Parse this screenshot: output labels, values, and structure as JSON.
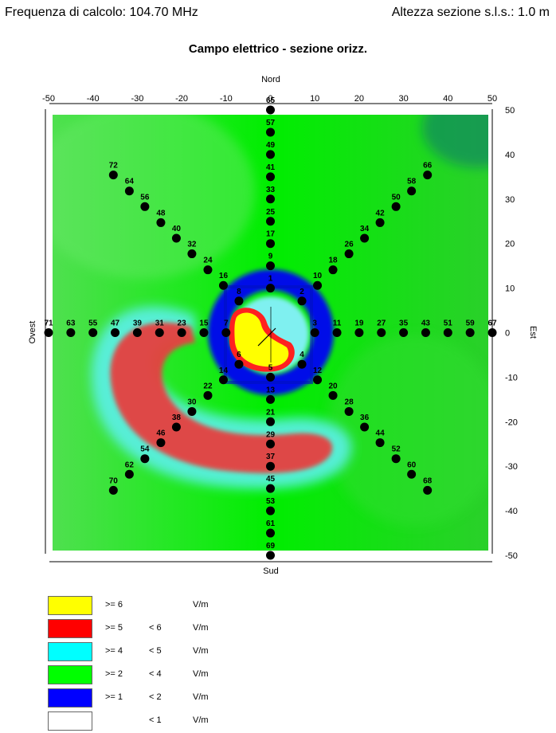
{
  "header": {
    "frequency": "Frequenza di calcolo: 104.70 MHz",
    "height": "Altezza sezione s.l.s.: 1.0 m"
  },
  "title": "Campo elettrico - sezione orizz.",
  "compass": {
    "north": "Nord",
    "south": "Sud",
    "west": "Ovest",
    "east": "Est"
  },
  "axes": {
    "x_ticks": [
      "-50",
      "-40",
      "-30",
      "-20",
      "-10",
      "0",
      "10",
      "20",
      "30",
      "40",
      "50"
    ],
    "y_ticks": [
      "50",
      "40",
      "30",
      "20",
      "10",
      "0",
      "-10",
      "-20",
      "-30",
      "-40",
      "-50"
    ]
  },
  "points": [
    {
      "id": "65",
      "x": 0,
      "y": 50
    },
    {
      "id": "57",
      "x": 0,
      "y": 45
    },
    {
      "id": "49",
      "x": 0,
      "y": 40
    },
    {
      "id": "41",
      "x": 0,
      "y": 35
    },
    {
      "id": "33",
      "x": 0,
      "y": 30
    },
    {
      "id": "25",
      "x": 0,
      "y": 25
    },
    {
      "id": "17",
      "x": 0,
      "y": 20
    },
    {
      "id": "9",
      "x": 0,
      "y": 15
    },
    {
      "id": "1",
      "x": 0,
      "y": 10
    },
    {
      "id": "5",
      "x": 0,
      "y": -10
    },
    {
      "id": "13",
      "x": 0,
      "y": -15
    },
    {
      "id": "21",
      "x": 0,
      "y": -20
    },
    {
      "id": "29",
      "x": 0,
      "y": -25
    },
    {
      "id": "37",
      "x": 0,
      "y": -30
    },
    {
      "id": "45",
      "x": 0,
      "y": -35
    },
    {
      "id": "53",
      "x": 0,
      "y": -40
    },
    {
      "id": "61",
      "x": 0,
      "y": -45
    },
    {
      "id": "69",
      "x": 0,
      "y": -50
    },
    {
      "id": "71",
      "x": -50,
      "y": 0
    },
    {
      "id": "63",
      "x": -45,
      "y": 0
    },
    {
      "id": "55",
      "x": -40,
      "y": 0
    },
    {
      "id": "47",
      "x": -35,
      "y": 0
    },
    {
      "id": "39",
      "x": -30,
      "y": 0
    },
    {
      "id": "31",
      "x": -25,
      "y": 0
    },
    {
      "id": "23",
      "x": -20,
      "y": 0
    },
    {
      "id": "15",
      "x": -15,
      "y": 0
    },
    {
      "id": "7",
      "x": -10,
      "y": 0
    },
    {
      "id": "3",
      "x": 10,
      "y": 0
    },
    {
      "id": "11",
      "x": 15,
      "y": 0
    },
    {
      "id": "19",
      "x": 20,
      "y": 0
    },
    {
      "id": "27",
      "x": 25,
      "y": 0
    },
    {
      "id": "35",
      "x": 30,
      "y": 0
    },
    {
      "id": "43",
      "x": 35,
      "y": 0
    },
    {
      "id": "51",
      "x": 40,
      "y": 0
    },
    {
      "id": "59",
      "x": 45,
      "y": 0
    },
    {
      "id": "67",
      "x": 50,
      "y": 0
    },
    {
      "id": "2",
      "x": 7.1,
      "y": 7.1
    },
    {
      "id": "10",
      "x": 10.6,
      "y": 10.6
    },
    {
      "id": "18",
      "x": 14.1,
      "y": 14.1
    },
    {
      "id": "26",
      "x": 17.7,
      "y": 17.7
    },
    {
      "id": "34",
      "x": 21.2,
      "y": 21.2
    },
    {
      "id": "42",
      "x": 24.7,
      "y": 24.7
    },
    {
      "id": "50",
      "x": 28.3,
      "y": 28.3
    },
    {
      "id": "58",
      "x": 31.8,
      "y": 31.8
    },
    {
      "id": "66",
      "x": 35.4,
      "y": 35.4
    },
    {
      "id": "8",
      "x": -7.1,
      "y": 7.1
    },
    {
      "id": "16",
      "x": -10.6,
      "y": 10.6
    },
    {
      "id": "24",
      "x": -14.1,
      "y": 14.1
    },
    {
      "id": "32",
      "x": -17.7,
      "y": 17.7
    },
    {
      "id": "40",
      "x": -21.2,
      "y": 21.2
    },
    {
      "id": "48",
      "x": -24.7,
      "y": 24.7
    },
    {
      "id": "56",
      "x": -28.3,
      "y": 28.3
    },
    {
      "id": "64",
      "x": -31.8,
      "y": 31.8
    },
    {
      "id": "72",
      "x": -35.4,
      "y": 35.4
    },
    {
      "id": "4",
      "x": 7.1,
      "y": -7.1
    },
    {
      "id": "12",
      "x": 10.6,
      "y": -10.6
    },
    {
      "id": "20",
      "x": 14.1,
      "y": -14.1
    },
    {
      "id": "28",
      "x": 17.7,
      "y": -17.7
    },
    {
      "id": "36",
      "x": 21.2,
      "y": -21.2
    },
    {
      "id": "44",
      "x": 24.7,
      "y": -24.7
    },
    {
      "id": "52",
      "x": 28.3,
      "y": -28.3
    },
    {
      "id": "60",
      "x": 31.8,
      "y": -31.8
    },
    {
      "id": "68",
      "x": 35.4,
      "y": -35.4
    },
    {
      "id": "6",
      "x": -7.1,
      "y": -7.1
    },
    {
      "id": "14",
      "x": -10.6,
      "y": -10.6
    },
    {
      "id": "22",
      "x": -14.1,
      "y": -14.1
    },
    {
      "id": "30",
      "x": -17.7,
      "y": -17.7
    },
    {
      "id": "38",
      "x": -21.2,
      "y": -21.2
    },
    {
      "id": "46",
      "x": -24.7,
      "y": -24.7
    },
    {
      "id": "54",
      "x": -28.3,
      "y": -28.3
    },
    {
      "id": "62",
      "x": -31.8,
      "y": -31.8
    },
    {
      "id": "70",
      "x": -35.4,
      "y": -35.4
    }
  ],
  "legend": [
    {
      "ge": ">= 6",
      "lt": "",
      "unit": "V/m",
      "color": "#ffff00"
    },
    {
      "ge": ">= 5",
      "lt": "< 6",
      "unit": "V/m",
      "color": "#ff0000"
    },
    {
      "ge": ">= 4",
      "lt": "< 5",
      "unit": "V/m",
      "color": "#00ffff"
    },
    {
      "ge": ">= 2",
      "lt": "< 4",
      "unit": "V/m",
      "color": "#00ff00"
    },
    {
      "ge": ">= 1",
      "lt": "< 2",
      "unit": "V/m",
      "color": "#0000ff"
    },
    {
      "ge": "",
      "lt": "< 1",
      "unit": "V/m",
      "color": "#ffffff"
    }
  ]
}
